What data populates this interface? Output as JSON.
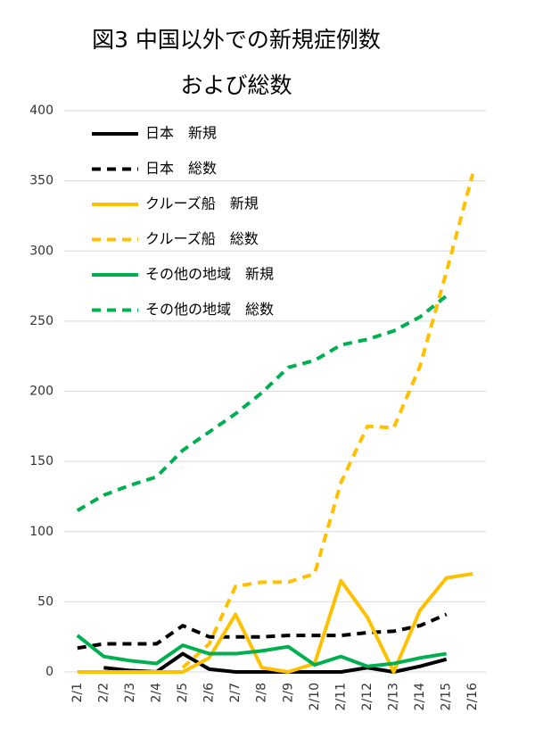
{
  "chart_data": {
    "type": "line",
    "title": [
      "図3 中国以外での新規症例数",
      "および総数"
    ],
    "categories": [
      "2/1",
      "2/2",
      "2/3",
      "2/4",
      "2/5",
      "2/6",
      "2/7",
      "2/8",
      "2/9",
      "2/10",
      "2/11",
      "2/12",
      "2/13",
      "2/14",
      "2/15",
      "2/16"
    ],
    "series": [
      {
        "name": "日本　新規",
        "color": "#000000",
        "dashed": false,
        "values": [
          null,
          3,
          1,
          0,
          13,
          2,
          0,
          0,
          0,
          0,
          0,
          3,
          0,
          4,
          9,
          null
        ]
      },
      {
        "name": "日本　総数",
        "color": "#000000",
        "dashed": true,
        "values": [
          17,
          20,
          20,
          20,
          33,
          25,
          25,
          25,
          26,
          26,
          26,
          28,
          29,
          33,
          41,
          null
        ]
      },
      {
        "name": "クルーズ船　新規",
        "color": "#ffc000",
        "dashed": false,
        "values": [
          0,
          0,
          0,
          0,
          0,
          10,
          41,
          3,
          0,
          6,
          65,
          39,
          0,
          44,
          67,
          70
        ]
      },
      {
        "name": "クルーズ船　総数",
        "color": "#ffc000",
        "dashed": true,
        "values": [
          null,
          null,
          null,
          null,
          3,
          20,
          61,
          64,
          64,
          70,
          135,
          175,
          174,
          218,
          285,
          355
        ]
      },
      {
        "name": "その他の地域　新規",
        "color": "#00b050",
        "dashed": false,
        "values": [
          26,
          11,
          8,
          6,
          19,
          13,
          13,
          15,
          18,
          5,
          11,
          4,
          6,
          10,
          13,
          null
        ]
      },
      {
        "name": "その他の地域　総数",
        "color": "#00b050",
        "dashed": true,
        "values": [
          115,
          126,
          133,
          139,
          158,
          171,
          184,
          199,
          217,
          222,
          233,
          237,
          243,
          253,
          268,
          null
        ]
      }
    ],
    "ylim": [
      0,
      400
    ],
    "yticks": [
      0,
      50,
      100,
      150,
      200,
      250,
      300,
      350,
      400
    ],
    "grid": true,
    "legend": "upper left"
  }
}
